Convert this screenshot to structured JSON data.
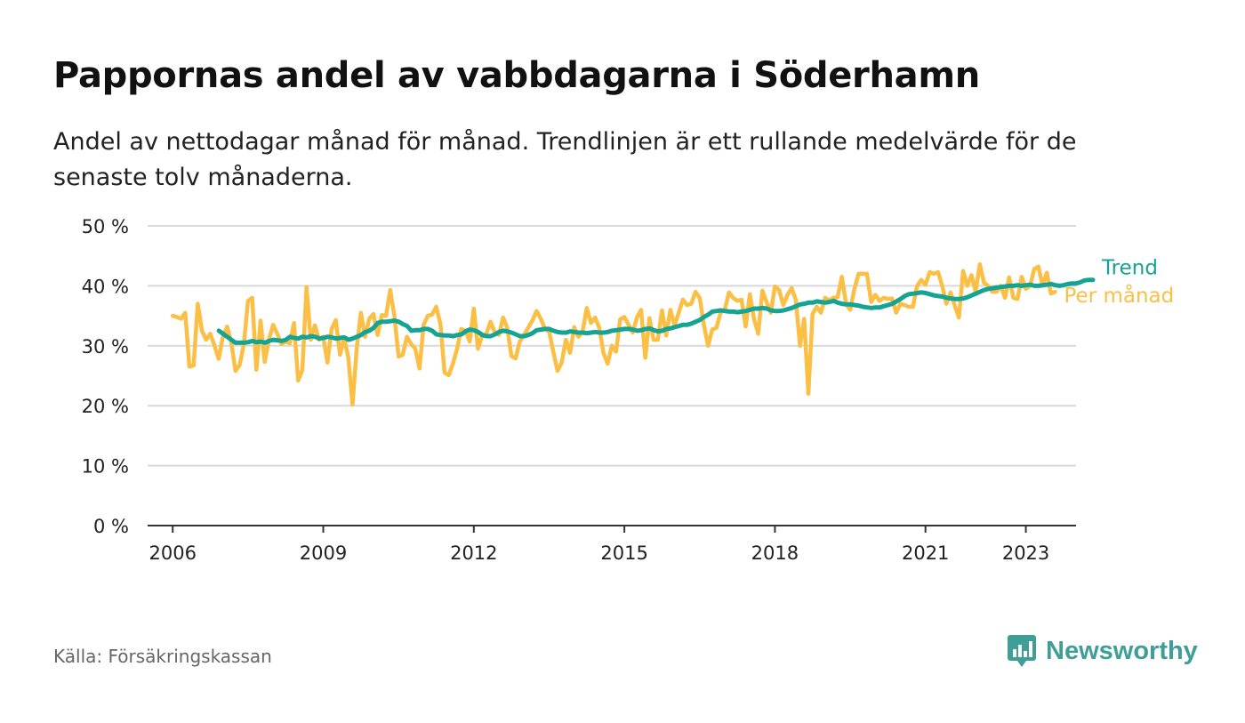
{
  "header": {
    "title": "Pappornas andel av vabbdagarna i Söderhamn",
    "subtitle": "Andel av nettodagar månad för månad. Trendlinjen är ett rullande medelvärde för de senaste tolv månaderna."
  },
  "footer": {
    "source": "Källa: Försäkringskassan",
    "brand": "Newsworthy",
    "brand_icon": "bar-chart-speech-bubble-icon"
  },
  "colors": {
    "monthly": "#fbbf45",
    "trend": "#16a393",
    "grid": "#d9d9d9",
    "axis": "#333333",
    "brand": "#3f9e97"
  },
  "chart_data": {
    "type": "line",
    "ylim": [
      0,
      50
    ],
    "xlim": [
      2005.5,
      2024.0
    ],
    "y_ticks": [
      0,
      10,
      20,
      30,
      40,
      50
    ],
    "y_tick_labels": [
      "0 %",
      "10 %",
      "20 %",
      "30 %",
      "40 %",
      "50 %"
    ],
    "x_ticks": [
      2006,
      2009,
      2012,
      2015,
      2018,
      2021,
      2023
    ],
    "x_tick_labels": [
      "2006",
      "2009",
      "2012",
      "2015",
      "2018",
      "2021",
      "2023"
    ],
    "grid": true,
    "legend": "direct-labels-right",
    "series": [
      {
        "name": "Trend",
        "start": 2006.92,
        "step": 0.0833333,
        "values": [
          32.5,
          32.0,
          31.5,
          31.0,
          30.5,
          30.5,
          30.5,
          30.6,
          30.8,
          30.6,
          30.7,
          30.5,
          30.8,
          31.0,
          30.9,
          30.8,
          31.0,
          31.5,
          31.3,
          31.2,
          31.5,
          31.4,
          31.6,
          31.5,
          31.2,
          31.3,
          31.5,
          31.4,
          31.2,
          31.3,
          31.4,
          31.0,
          31.2,
          31.5,
          31.8,
          32.3,
          32.5,
          33.0,
          33.8,
          34.0,
          34.0,
          34.1,
          34.2,
          34.0,
          33.6,
          33.3,
          32.5,
          32.6,
          32.6,
          32.8,
          32.8,
          32.5,
          31.9,
          31.8,
          31.7,
          31.7,
          31.6,
          31.8,
          31.9,
          32.4,
          32.7,
          32.6,
          32.3,
          31.8,
          31.6,
          31.6,
          31.9,
          32.3,
          32.5,
          32.4,
          32.2,
          31.9,
          31.6,
          31.6,
          31.8,
          32.1,
          32.6,
          32.7,
          32.8,
          32.8,
          32.5,
          32.3,
          32.2,
          32.2,
          32.4,
          32.3,
          32.2,
          32.2,
          32.1,
          32.2,
          32.3,
          32.2,
          32.2,
          32.3,
          32.5,
          32.6,
          32.7,
          32.8,
          32.8,
          32.7,
          32.5,
          32.6,
          32.8,
          32.9,
          32.6,
          32.4,
          32.5,
          32.8,
          32.9,
          33.1,
          33.3,
          33.5,
          33.5,
          33.7,
          34.0,
          34.3,
          34.8,
          35.2,
          35.7,
          35.8,
          35.9,
          35.8,
          35.7,
          35.7,
          35.6,
          35.7,
          35.8,
          36.0,
          36.2,
          36.2,
          36.3,
          36.2,
          35.9,
          35.8,
          35.8,
          35.9,
          36.1,
          36.3,
          36.6,
          36.9,
          37.0,
          37.2,
          37.2,
          37.4,
          37.3,
          37.2,
          37.3,
          37.5,
          37.2,
          37.0,
          36.9,
          36.9,
          36.8,
          36.7,
          36.5,
          36.4,
          36.3,
          36.4,
          36.4,
          36.6,
          36.8,
          37.0,
          37.4,
          37.8,
          38.3,
          38.6,
          38.7,
          38.8,
          38.9,
          38.8,
          38.6,
          38.4,
          38.3,
          38.2,
          38.0,
          37.9,
          37.8,
          37.8,
          37.9,
          38.1,
          38.4,
          38.7,
          39.0,
          39.3,
          39.5,
          39.6,
          39.7,
          39.8,
          39.9,
          40.0,
          40.0,
          40.1,
          40.0,
          40.1,
          40.2,
          40.0,
          40.0,
          40.1,
          40.2,
          40.3,
          40.1,
          40.0,
          40.1,
          40.3,
          40.4,
          40.4,
          40.6,
          40.9,
          41.0,
          41.0
        ]
      },
      {
        "name": "Per månad",
        "start": 2006.0,
        "step": 0.0833333,
        "values": [
          35.0,
          34.8,
          34.5,
          35.5,
          26.5,
          26.7,
          37.0,
          32.5,
          31.0,
          32.0,
          30.0,
          27.8,
          31.5,
          33.2,
          30.5,
          25.8,
          26.8,
          30.3,
          37.5,
          38.0,
          26.0,
          34.2,
          27.3,
          31.0,
          33.5,
          32.0,
          30.3,
          30.7,
          30.4,
          33.8,
          24.2,
          26.0,
          39.8,
          31.0,
          33.4,
          31.0,
          31.5,
          27.2,
          32.8,
          34.3,
          28.5,
          31.3,
          28.0,
          20.2,
          29.5,
          35.5,
          31.5,
          34.5,
          35.3,
          31.8,
          35.1,
          35.0,
          39.3,
          35.0,
          28.2,
          28.5,
          31.5,
          30.3,
          29.5,
          26.2,
          33.5,
          35.0,
          35.2,
          36.5,
          33.7,
          25.5,
          25.1,
          27.0,
          29.5,
          32.8,
          32.5,
          30.7,
          36.2,
          29.5,
          31.7,
          32.0,
          34.0,
          32.3,
          31.8,
          34.7,
          33.0,
          28.3,
          27.9,
          30.7,
          31.8,
          33.0,
          34.2,
          35.8,
          34.5,
          32.8,
          32.4,
          29.0,
          25.8,
          27.2,
          31.0,
          28.8,
          33.1,
          31.5,
          32.3,
          36.3,
          33.8,
          34.7,
          33.0,
          28.8,
          27.0,
          30.0,
          29.0,
          34.4,
          34.8,
          33.5,
          32.2,
          34.7,
          36.0,
          28.0,
          34.6,
          31.0,
          31.0,
          35.9,
          31.7,
          36.0,
          33.4,
          35.5,
          37.7,
          36.8,
          37.0,
          39.0,
          38.0,
          33.5,
          30.0,
          32.7,
          33.0,
          35.5,
          36.0,
          38.9,
          38.0,
          37.5,
          37.7,
          33.2,
          38.6,
          34.5,
          32.0,
          39.2,
          37.3,
          35.5,
          39.9,
          39.3,
          36.8,
          38.5,
          39.6,
          37.7,
          30.0,
          34.5,
          22.0,
          35.3,
          36.5,
          35.5,
          38.0,
          37.6,
          38.0,
          38.1,
          41.5,
          37.0,
          36.0,
          39.5,
          42.0,
          42.0,
          42.0,
          37.3,
          38.5,
          37.5,
          38.0,
          37.8,
          37.9,
          35.5,
          37.0,
          36.8,
          36.5,
          36.5,
          40.0,
          41.0,
          40.2,
          42.3,
          42.0,
          42.3,
          40.0,
          37.0,
          38.9,
          36.7,
          34.7,
          42.5,
          40.0,
          41.8,
          39.0,
          43.6,
          40.5,
          40.0,
          39.0,
          39.0,
          40.0,
          38.0,
          41.4,
          38.0,
          37.8,
          41.5,
          39.5,
          40.0,
          42.8,
          43.2,
          40.0,
          42.2,
          38.7,
          39.0
        ]
      }
    ]
  }
}
